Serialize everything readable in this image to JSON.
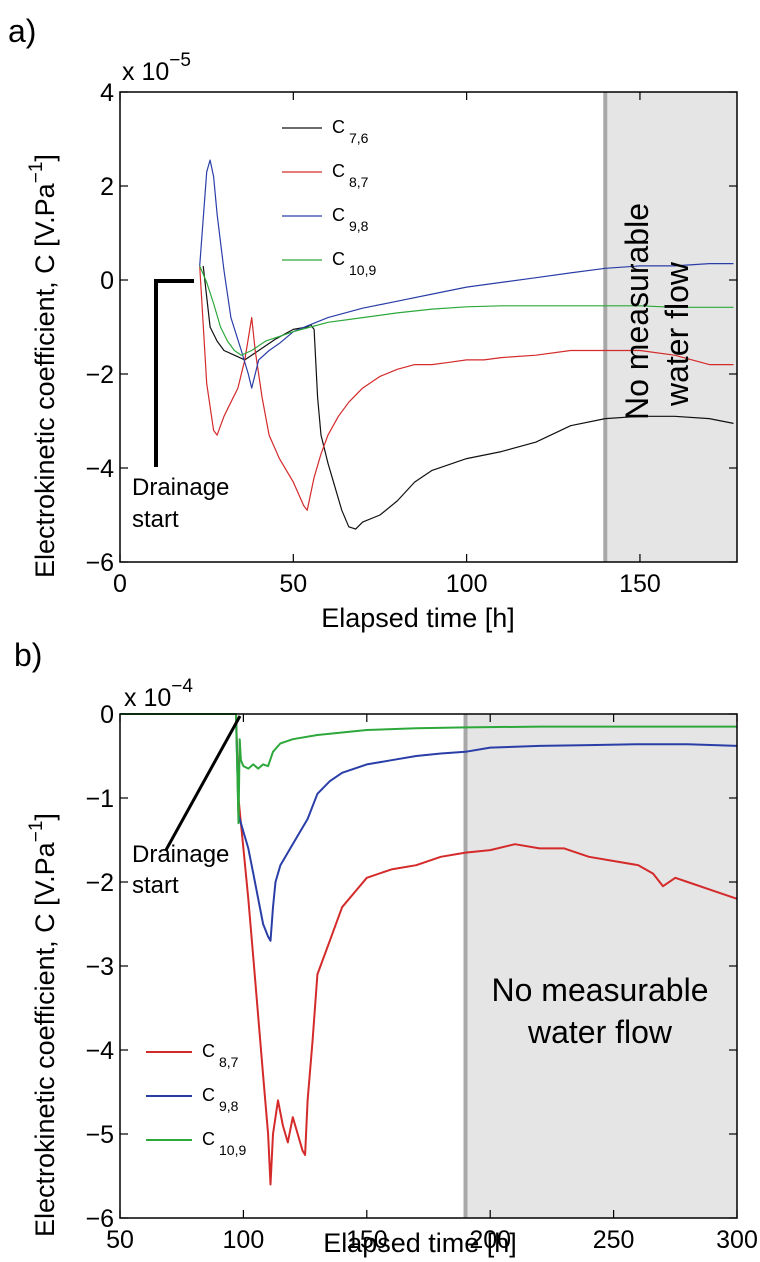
{
  "chart_data": [
    {
      "panel": "a)",
      "type": "line",
      "xlabel": "Elapsed time [h]",
      "ylabel": "Electrokinetic coefficient, C [V.Pa",
      "ylabel_sup": "−1",
      "ylabel_end": "]",
      "exponent": "x 10",
      "exponent_sup": "−5",
      "xlim": [
        0,
        178
      ],
      "ylim": [
        -6,
        4
      ],
      "xticks": [
        0,
        50,
        100,
        150
      ],
      "xtick_labels": [
        "0",
        "50",
        "100",
        "150"
      ],
      "yticks": [
        4,
        2,
        0,
        -2,
        -4,
        -6
      ],
      "ytick_labels": [
        "4",
        "2",
        "0",
        "−2",
        "−4",
        "−6"
      ],
      "legend_placement": "top-center",
      "shaded_region": {
        "x_start": 140,
        "x_end": 178,
        "color": "#e5e5e5",
        "line_color": "#a8a8a8",
        "text": "No measurable water flow",
        "text_line1": "No measurable",
        "text_line2": "water flow"
      },
      "annotation": {
        "text_line1": "Drainage",
        "text_line2": "start"
      },
      "series": [
        {
          "name": "C",
          "sub": "7,6",
          "color": "#111111",
          "x": [
            24,
            26,
            28,
            30,
            33,
            36,
            40,
            45,
            50,
            54,
            55,
            56,
            57,
            58,
            60,
            62,
            64,
            66,
            68,
            70,
            75,
            80,
            85,
            90,
            100,
            110,
            120,
            130,
            140,
            150,
            160,
            170,
            177
          ],
          "y": [
            0.3,
            -1.0,
            -1.3,
            -1.5,
            -1.6,
            -1.7,
            -1.5,
            -1.25,
            -1.05,
            -1.0,
            -0.95,
            -1.05,
            -2.5,
            -3.3,
            -3.9,
            -4.4,
            -4.9,
            -5.25,
            -5.3,
            -5.15,
            -5.0,
            -4.7,
            -4.3,
            -4.05,
            -3.8,
            -3.65,
            -3.45,
            -3.1,
            -2.95,
            -2.9,
            -2.9,
            -2.95,
            -3.05
          ]
        },
        {
          "name": "C",
          "sub": "8,7",
          "color": "#d42a2a",
          "x": [
            23,
            25,
            27,
            28,
            30,
            32,
            34,
            36,
            38,
            39,
            41,
            43,
            46,
            50,
            53,
            54,
            56,
            58,
            60,
            63,
            66,
            70,
            75,
            80,
            85,
            90,
            95,
            100,
            105,
            110,
            120,
            130,
            140,
            150,
            160,
            170,
            177
          ],
          "y": [
            0.3,
            -2.2,
            -3.2,
            -3.3,
            -2.9,
            -2.6,
            -2.3,
            -1.7,
            -0.8,
            -1.5,
            -2.5,
            -3.3,
            -3.8,
            -4.3,
            -4.8,
            -4.9,
            -4.2,
            -3.7,
            -3.3,
            -2.9,
            -2.6,
            -2.3,
            -2.05,
            -1.9,
            -1.8,
            -1.8,
            -1.75,
            -1.7,
            -1.7,
            -1.65,
            -1.6,
            -1.5,
            -1.5,
            -1.5,
            -1.6,
            -1.8,
            -1.8
          ]
        },
        {
          "name": "C",
          "sub": "9,8",
          "color": "#2a3ea8",
          "x": [
            23,
            24,
            25,
            26,
            27,
            28,
            30,
            32,
            35,
            37,
            38,
            40,
            43,
            46,
            50,
            55,
            60,
            70,
            80,
            90,
            100,
            110,
            120,
            130,
            140,
            150,
            160,
            170,
            177
          ],
          "y": [
            0.3,
            1.3,
            2.3,
            2.55,
            2.2,
            1.4,
            0.2,
            -0.8,
            -1.5,
            -2.0,
            -2.3,
            -1.7,
            -1.5,
            -1.35,
            -1.1,
            -0.95,
            -0.8,
            -0.6,
            -0.45,
            -0.3,
            -0.15,
            -0.05,
            0.05,
            0.15,
            0.25,
            0.3,
            0.3,
            0.35,
            0.35
          ]
        },
        {
          "name": "C",
          "sub": "10,9",
          "color": "#2da83a",
          "x": [
            23,
            25,
            27,
            29,
            31,
            33,
            35,
            38,
            42,
            46,
            50,
            55,
            60,
            70,
            80,
            90,
            100,
            110,
            120,
            130,
            140,
            150,
            160,
            170,
            177
          ],
          "y": [
            0.3,
            -0.05,
            -0.5,
            -1.0,
            -1.3,
            -1.5,
            -1.6,
            -1.5,
            -1.3,
            -1.2,
            -1.1,
            -1.0,
            -0.9,
            -0.8,
            -0.7,
            -0.62,
            -0.57,
            -0.55,
            -0.55,
            -0.55,
            -0.55,
            -0.55,
            -0.58,
            -0.58,
            -0.58
          ]
        }
      ]
    },
    {
      "panel": "b)",
      "type": "line",
      "xlabel": "Elapsed time [h]",
      "ylabel": "Electrokinetic coefficient, C [V.Pa",
      "ylabel_sup": "−1",
      "ylabel_end": "]",
      "exponent": "x 10",
      "exponent_sup": "−4",
      "xlim": [
        50,
        300
      ],
      "ylim": [
        -6,
        0
      ],
      "xticks": [
        50,
        100,
        150,
        200,
        250,
        300
      ],
      "xtick_labels": [
        "50",
        "100",
        "150",
        "200",
        "250",
        "300"
      ],
      "yticks": [
        0,
        -1,
        -2,
        -3,
        -4,
        -5,
        -6
      ],
      "ytick_labels": [
        "0",
        "−1",
        "−2",
        "−3",
        "−4",
        "−5",
        "−6"
      ],
      "legend_placement": "bottom-left",
      "shaded_region": {
        "x_start": 190,
        "x_end": 300,
        "color": "#e5e5e5",
        "line_color": "#a8a8a8",
        "text": "No measurable water flow",
        "text_line1": "No measurable",
        "text_line2": "water flow"
      },
      "annotation": {
        "text_line1": "Drainage",
        "text_line2": "start"
      },
      "series": [
        {
          "name": "C",
          "sub": "8,7",
          "color": "#d42a2a",
          "x": [
            50,
            97,
            98,
            99,
            100,
            102,
            104,
            106,
            108,
            110,
            111,
            112,
            114,
            116,
            118,
            120,
            122,
            124,
            125,
            126,
            128,
            130,
            135,
            140,
            150,
            160,
            170,
            180,
            190,
            200,
            210,
            220,
            230,
            240,
            250,
            260,
            266,
            270,
            275,
            280,
            290,
            300
          ],
          "y": [
            0,
            0,
            -1.0,
            -1.3,
            -1.6,
            -2.2,
            -2.9,
            -3.6,
            -4.3,
            -5.0,
            -5.6,
            -5.0,
            -4.6,
            -4.9,
            -5.1,
            -4.8,
            -5.0,
            -5.2,
            -5.25,
            -4.6,
            -3.9,
            -3.1,
            -2.7,
            -2.3,
            -1.95,
            -1.85,
            -1.8,
            -1.7,
            -1.65,
            -1.62,
            -1.55,
            -1.6,
            -1.6,
            -1.7,
            -1.75,
            -1.8,
            -1.9,
            -2.05,
            -1.95,
            -2.0,
            -2.1,
            -2.2
          ]
        },
        {
          "name": "C",
          "sub": "9,8",
          "color": "#2a3ea8",
          "x": [
            50,
            97,
            98,
            100,
            102,
            104,
            106,
            108,
            110,
            111,
            112,
            113,
            115,
            118,
            122,
            126,
            130,
            135,
            140,
            150,
            160,
            170,
            180,
            190,
            200,
            220,
            240,
            260,
            280,
            300
          ],
          "y": [
            0,
            0,
            -1.2,
            -1.4,
            -1.6,
            -1.9,
            -2.2,
            -2.5,
            -2.65,
            -2.7,
            -2.3,
            -2.0,
            -1.8,
            -1.65,
            -1.45,
            -1.25,
            -0.95,
            -0.8,
            -0.7,
            -0.6,
            -0.55,
            -0.5,
            -0.47,
            -0.45,
            -0.4,
            -0.38,
            -0.37,
            -0.36,
            -0.36,
            -0.38
          ]
        },
        {
          "name": "C",
          "sub": "10,9",
          "color": "#2da83a",
          "x": [
            50,
            97,
            98,
            98.5,
            99,
            100,
            102,
            104,
            106,
            108,
            110,
            112,
            115,
            120,
            130,
            140,
            150,
            170,
            190,
            220,
            250,
            300
          ],
          "y": [
            0,
            0,
            -1.3,
            -0.3,
            -0.55,
            -0.62,
            -0.65,
            -0.6,
            -0.65,
            -0.6,
            -0.62,
            -0.45,
            -0.35,
            -0.3,
            -0.25,
            -0.22,
            -0.19,
            -0.17,
            -0.16,
            -0.15,
            -0.15,
            -0.15
          ]
        }
      ]
    }
  ]
}
